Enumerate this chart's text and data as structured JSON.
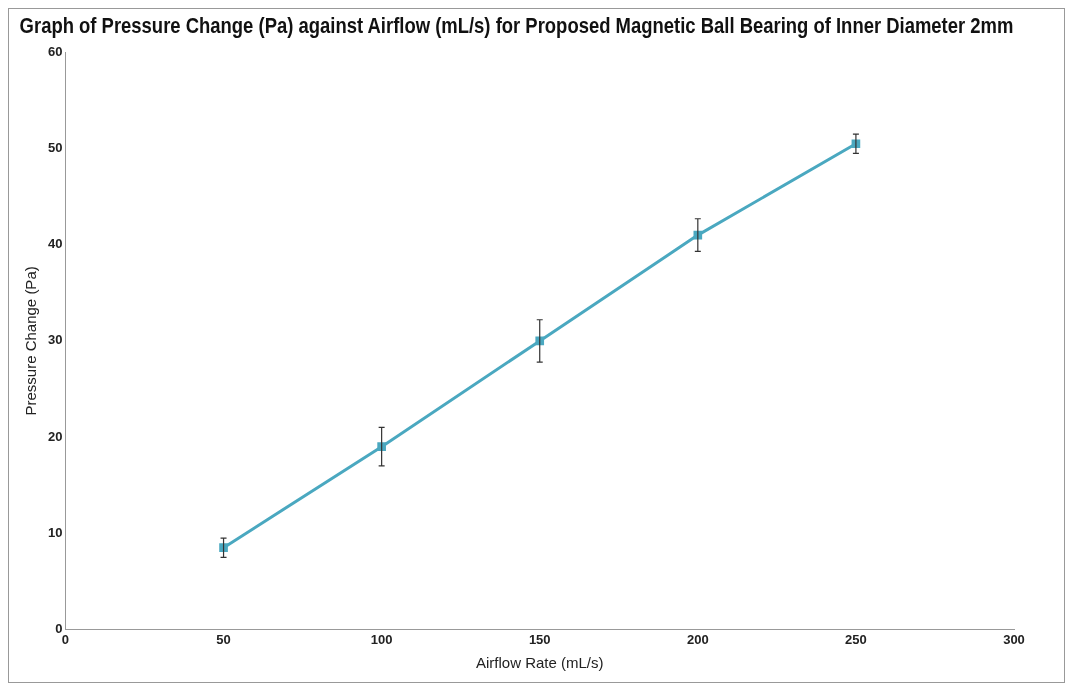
{
  "chart_data": {
    "type": "line",
    "title": "Graph of Pressure Change (Pa) against Airflow (mL/s) for Proposed Magnetic Ball Bearing of Inner Diameter 2mm",
    "xlabel": "Airflow Rate (mL/s)",
    "ylabel": "Pressure Change (Pa)",
    "x": [
      50,
      100,
      150,
      200,
      250
    ],
    "series": [
      {
        "color": "#4aa8c0",
        "values": [
          8.5,
          19,
          30,
          41,
          50.5
        ],
        "errors": [
          1,
          2,
          2.2,
          1.7,
          1
        ]
      }
    ],
    "xlim": [
      0,
      300
    ],
    "xticks": [
      0,
      50,
      100,
      150,
      200,
      250,
      300
    ],
    "ylim": [
      0,
      60
    ],
    "yticks": [
      0,
      10,
      20,
      30,
      40,
      50,
      60
    ],
    "grid": false,
    "legend": false,
    "marker": "square",
    "line_style": "solid"
  }
}
